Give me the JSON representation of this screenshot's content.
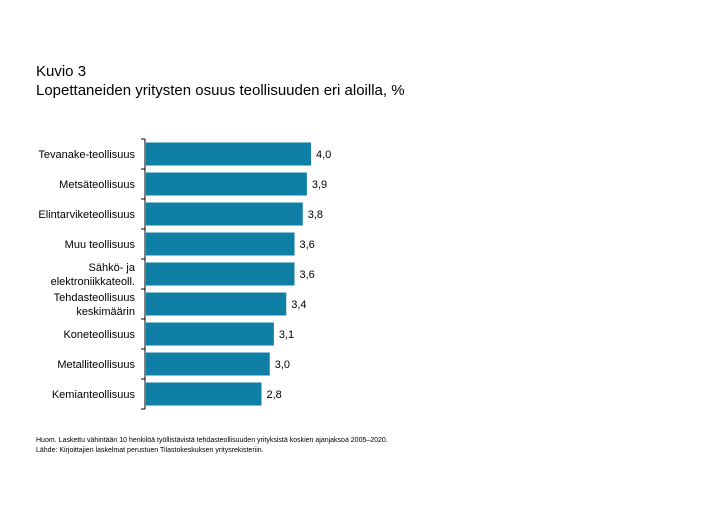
{
  "figure": {
    "label": "Kuvio 3",
    "title": "Lopettaneiden yritysten osuus teollisuuden eri aloilla, %"
  },
  "chart_data": {
    "type": "bar",
    "orientation": "horizontal",
    "title": "Lopettaneiden yritysten osuus teollisuuden eri aloilla, %",
    "categories": [
      "Tevanake-teollisuus",
      "Metsäteollisuus",
      "Elintarviketeollisuus",
      "Muu teollisuus",
      "Sähkö- ja elektroniikkateoll.",
      "Tehdasteollisuus keskimäärin",
      "Koneteollisuus",
      "Metalliteollisuus",
      "Kemianteollisuus"
    ],
    "category_lines": [
      [
        "Tevanake-teollisuus"
      ],
      [
        "Metsäteollisuus"
      ],
      [
        "Elintarviketeollisuus"
      ],
      [
        "Muu teollisuus"
      ],
      [
        "Sähkö- ja",
        "elektroniikkateoll."
      ],
      [
        "Tehdasteollisuus",
        "keskimäärin"
      ],
      [
        "Koneteollisuus"
      ],
      [
        "Metalliteollisuus"
      ],
      [
        "Kemianteollisuus"
      ]
    ],
    "values": [
      4.0,
      3.9,
      3.8,
      3.6,
      3.6,
      3.4,
      3.1,
      3.0,
      2.8
    ],
    "value_labels": [
      "4,0",
      "3,9",
      "3,8",
      "3,6",
      "3,6",
      "3,4",
      "3,1",
      "3,0",
      "2,8"
    ],
    "xlim": [
      0,
      4.0
    ],
    "xlabel": "",
    "ylabel": "",
    "grid": false,
    "legend": "none",
    "bar_color": "#0f7fa5"
  },
  "notes": {
    "line1": "Huom. Laskettu vähintään 10 henkilöä työllistävistä tehdasteollisuuden yrityksistä koskien ajanjaksoa 2005–2020.",
    "line2": "Lähde: Kirjoittajien laskelmat perustuen Tilastokeskuksen yritysrekisteriin."
  }
}
